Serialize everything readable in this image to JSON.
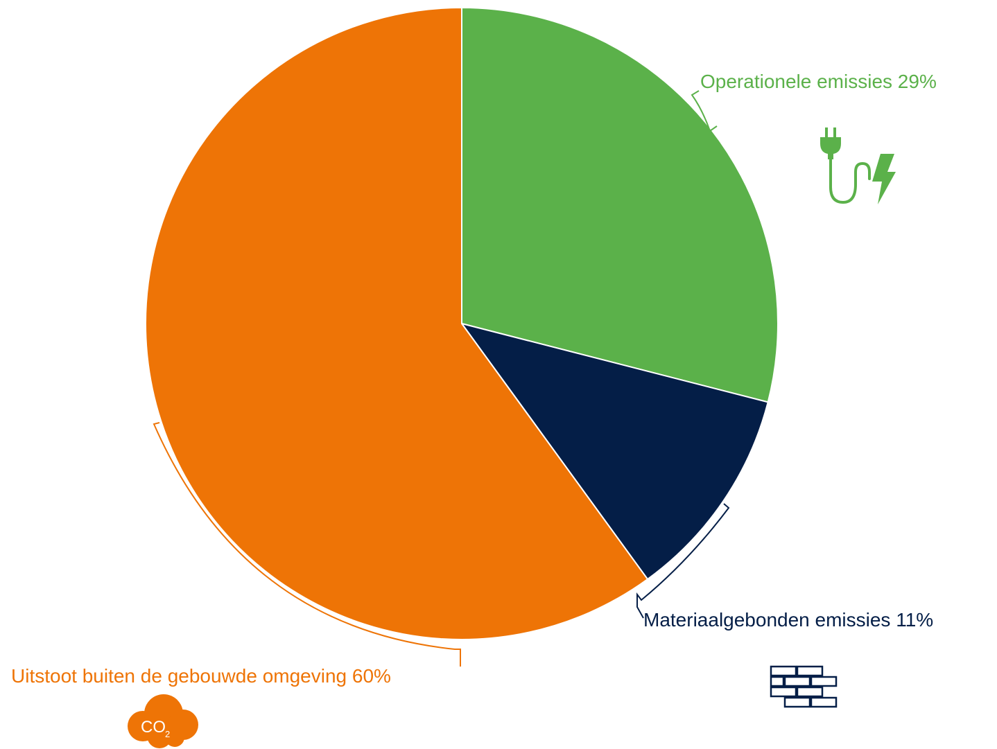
{
  "chart_data": {
    "type": "pie",
    "title": "",
    "start_angle_deg": 0,
    "direction": "clockwise",
    "slices": [
      {
        "name": "Operationele emissies",
        "value": 29,
        "label": "Operationele emissies 29%",
        "color": "#5BB14A",
        "icon": "plug-lightning-icon"
      },
      {
        "name": "Materiaalgebonden emissies",
        "value": 11,
        "label": "Materiaalgebonden emissies 11%",
        "color": "#041E47",
        "icon": "brick-wall-icon"
      },
      {
        "name": "Uitstoot buiten de gebouwde omgeving",
        "value": 60,
        "label": "Uitstoot buiten de gebouwde omgeving 60%",
        "color": "#EE7406",
        "icon": "co2-cloud-icon"
      }
    ],
    "legend": "none",
    "labels": "outside-with-brackets"
  },
  "icons": {
    "co2_text": "CO",
    "co2_subscript": "2"
  }
}
